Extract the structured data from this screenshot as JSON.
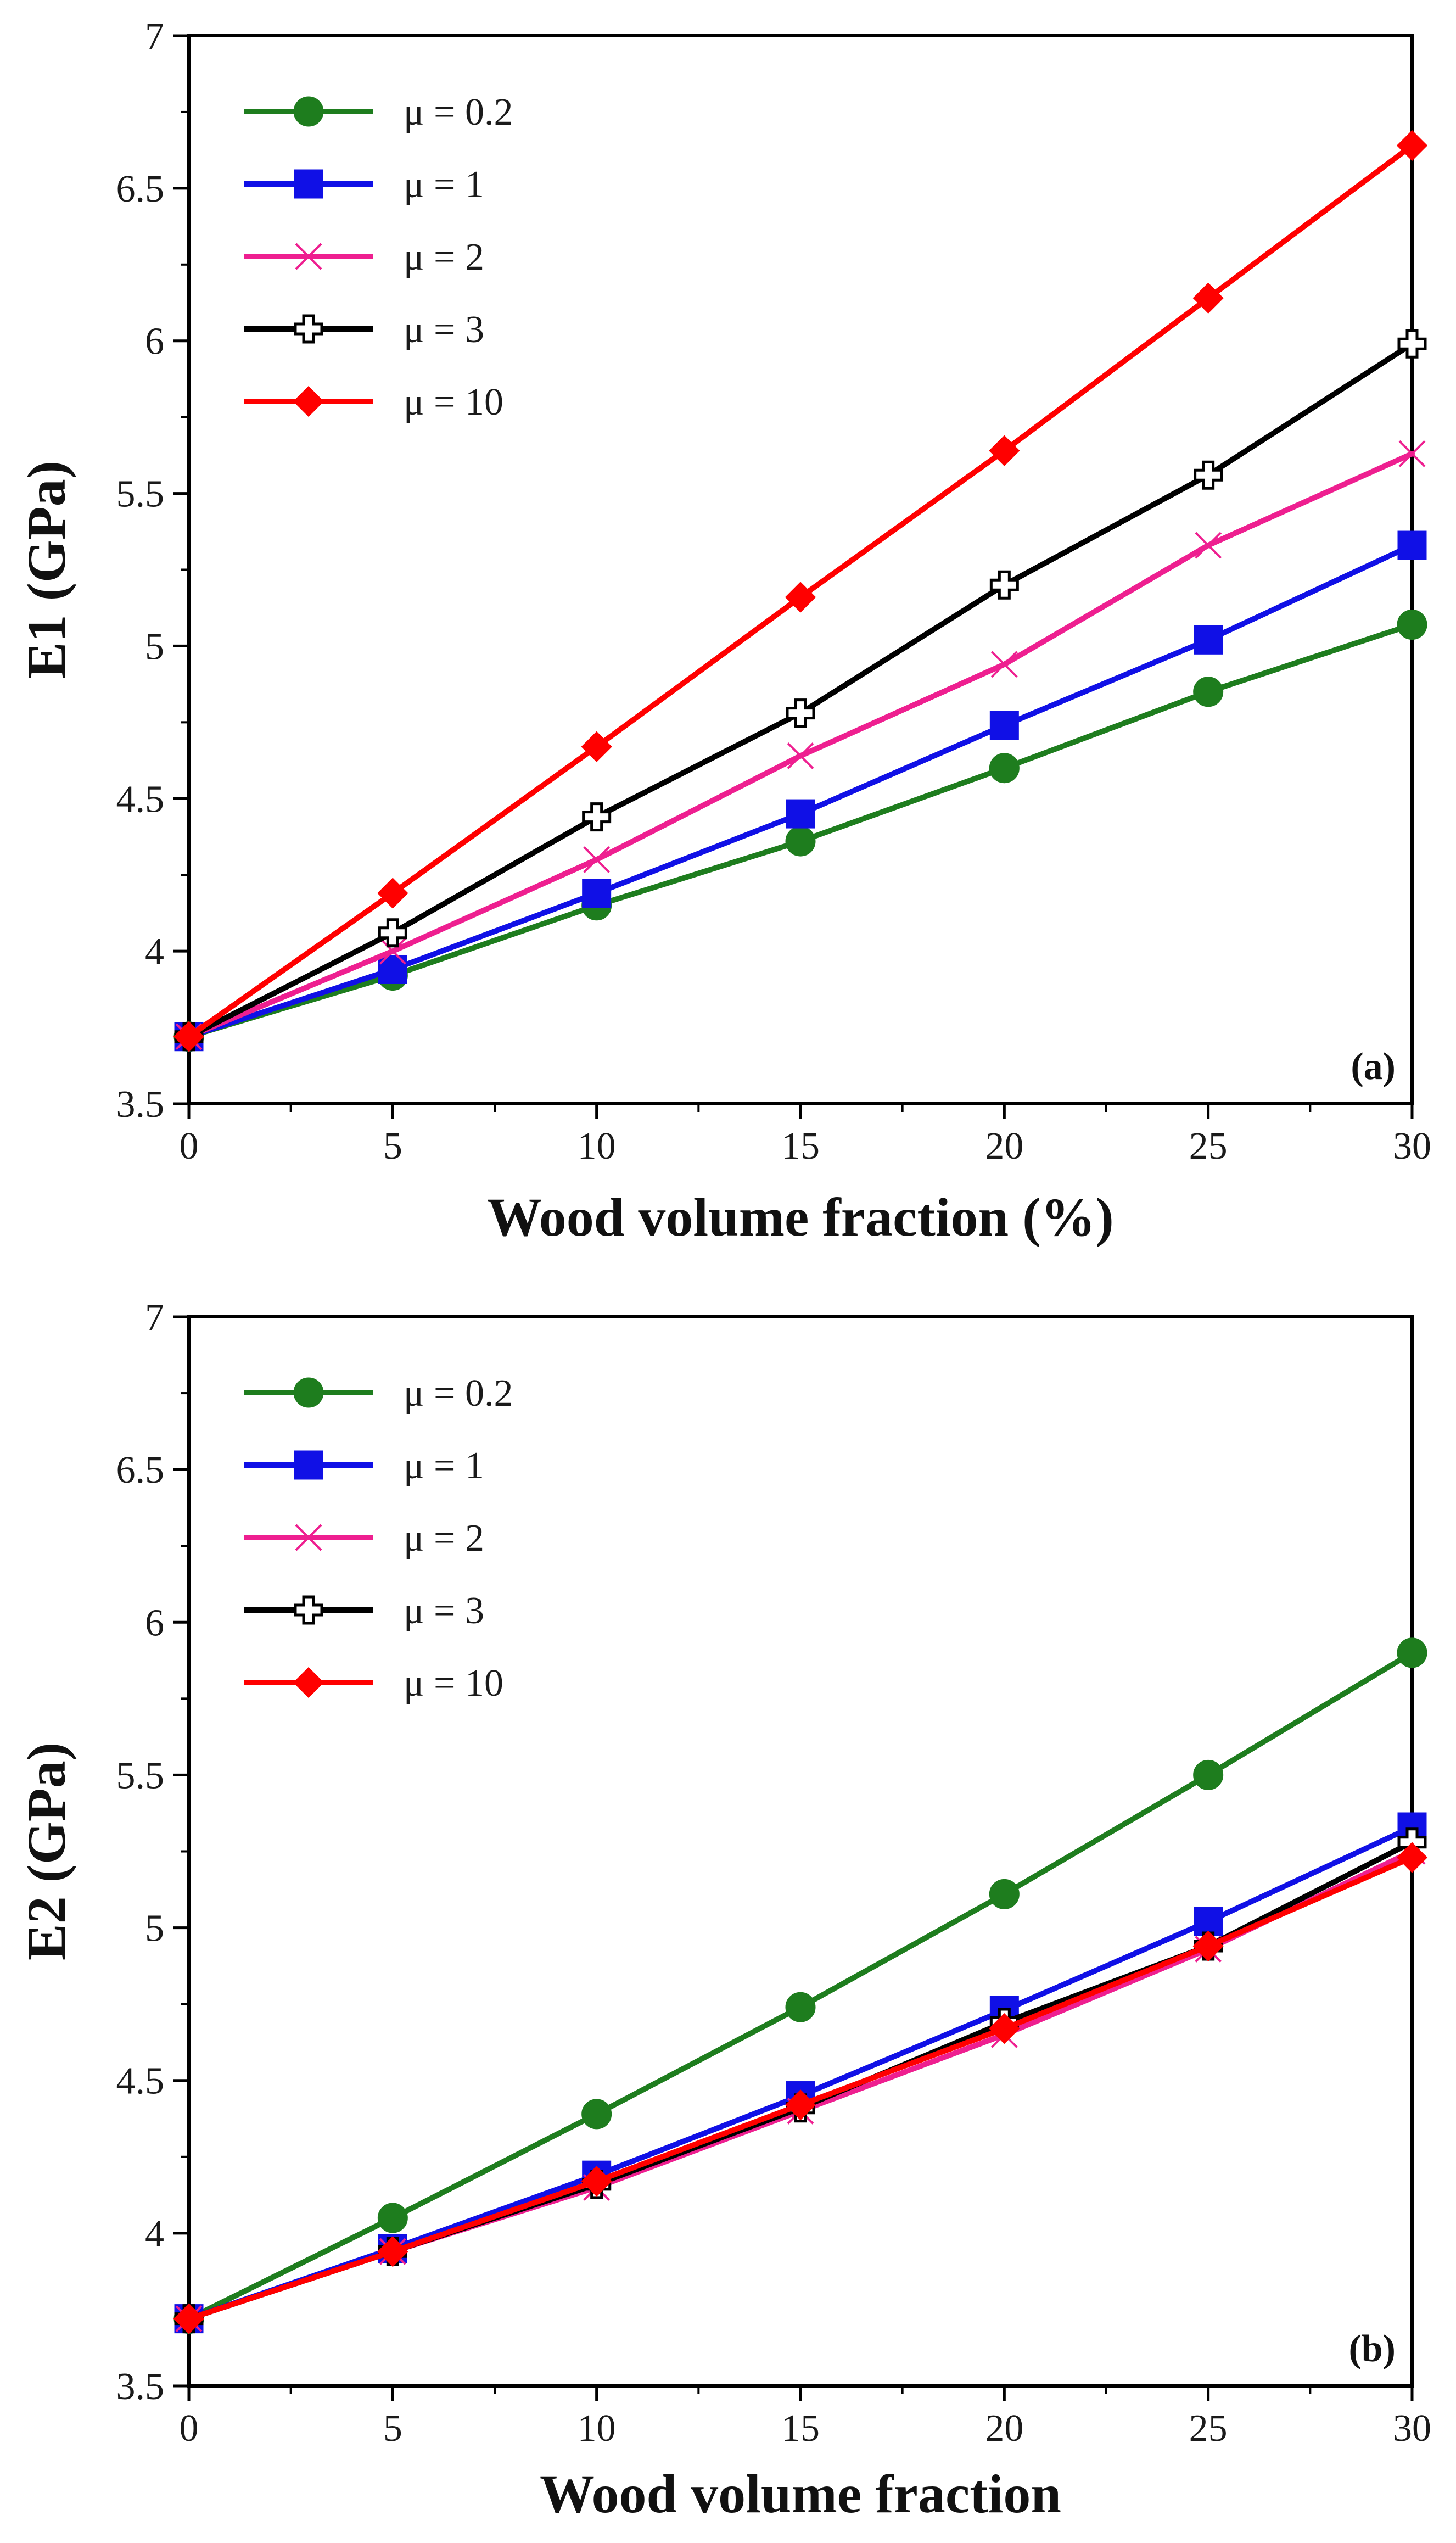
{
  "chart_data": [
    {
      "type": "line",
      "panel_label": "(a)",
      "title": "",
      "xlabel": "Wood volume fraction (%)",
      "ylabel": "E1 (GPa)",
      "xlim": [
        0,
        30
      ],
      "ylim": [
        3.5,
        7
      ],
      "xticks": [
        0,
        5,
        10,
        15,
        20,
        25,
        30
      ],
      "yticks": [
        3.5,
        4,
        4.5,
        5,
        5.5,
        6,
        6.5,
        7
      ],
      "xtick_labels": [
        "0",
        "5",
        "10",
        "15",
        "20",
        "25",
        "30"
      ],
      "ytick_labels": [
        "3.5",
        "4",
        "4.5",
        "5",
        "5.5",
        "6",
        "6.5",
        "7"
      ],
      "grid": false,
      "legend_position": "top-left",
      "x": [
        0,
        5,
        10,
        15,
        20,
        25,
        30
      ],
      "series": [
        {
          "name": "μ = 0.2",
          "color": "#1e7d1e",
          "marker": "circle",
          "values": [
            3.72,
            3.92,
            4.15,
            4.36,
            4.6,
            4.85,
            5.07
          ]
        },
        {
          "name": "μ = 1",
          "color": "#1010e6",
          "marker": "square",
          "values": [
            3.72,
            3.94,
            4.19,
            4.45,
            4.74,
            5.02,
            5.33
          ]
        },
        {
          "name": "μ = 2",
          "color": "#ee1f90",
          "marker": "x",
          "values": [
            3.72,
            4.0,
            4.3,
            4.64,
            4.94,
            5.33,
            5.63
          ]
        },
        {
          "name": "μ = 3",
          "color": "#000000",
          "marker": "cross",
          "values": [
            3.72,
            4.06,
            4.44,
            4.78,
            5.2,
            5.56,
            5.99
          ]
        },
        {
          "name": "μ = 10",
          "color": "#ff0000",
          "marker": "diamond",
          "values": [
            3.72,
            4.19,
            4.67,
            5.16,
            5.64,
            6.14,
            6.64
          ]
        }
      ]
    },
    {
      "type": "line",
      "panel_label": "(b)",
      "title": "",
      "xlabel": "Wood volume fraction",
      "ylabel": "E2 (GPa)",
      "xlim": [
        0,
        30
      ],
      "ylim": [
        3.5,
        7
      ],
      "xticks": [
        0,
        5,
        10,
        15,
        20,
        25,
        30
      ],
      "yticks": [
        3.5,
        4,
        4.5,
        5,
        5.5,
        6,
        6.5,
        7
      ],
      "xtick_labels": [
        "0",
        "5",
        "10",
        "15",
        "20",
        "25",
        "30"
      ],
      "ytick_labels": [
        "3.5",
        "4",
        "4.5",
        "5",
        "5.5",
        "6",
        "6.5",
        "7"
      ],
      "grid": false,
      "legend_position": "top-left",
      "x": [
        0,
        5,
        10,
        15,
        20,
        25,
        30
      ],
      "series": [
        {
          "name": "μ = 0.2",
          "color": "#1e7d1e",
          "marker": "circle",
          "values": [
            3.72,
            4.05,
            4.39,
            4.74,
            5.11,
            5.5,
            5.9
          ]
        },
        {
          "name": "μ = 1",
          "color": "#1010e6",
          "marker": "square",
          "values": [
            3.72,
            3.95,
            4.19,
            4.45,
            4.73,
            5.02,
            5.33
          ]
        },
        {
          "name": "μ = 2",
          "color": "#ee1f90",
          "marker": "x",
          "values": [
            3.72,
            3.94,
            4.15,
            4.4,
            4.65,
            4.93,
            5.25
          ]
        },
        {
          "name": "μ = 3",
          "color": "#000000",
          "marker": "cross",
          "values": [
            3.72,
            3.94,
            4.16,
            4.41,
            4.69,
            4.94,
            5.28
          ]
        },
        {
          "name": "μ = 10",
          "color": "#ff0000",
          "marker": "diamond",
          "values": [
            3.72,
            3.94,
            4.17,
            4.42,
            4.67,
            4.94,
            5.23
          ]
        }
      ]
    }
  ]
}
